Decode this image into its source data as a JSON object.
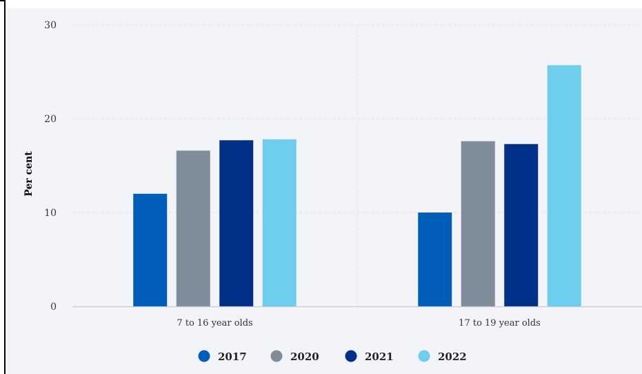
{
  "chart_data": {
    "type": "bar",
    "title": "",
    "xlabel": "",
    "ylabel": "Per cent",
    "ylim": [
      0,
      30
    ],
    "yticks": [
      0,
      10,
      20,
      30
    ],
    "grid": true,
    "legend_position": "bottom",
    "categories": [
      "7 to 16 year olds",
      "17 to 19 year olds"
    ],
    "series": [
      {
        "name": "2017",
        "color": "#005eb8",
        "values": [
          12.0,
          10.0
        ]
      },
      {
        "name": "2020",
        "color": "#7f8c99",
        "values": [
          16.6,
          17.6
        ]
      },
      {
        "name": "2021",
        "color": "#003087",
        "values": [
          17.7,
          17.3
        ]
      },
      {
        "name": "2022",
        "color": "#6fcdee",
        "values": [
          17.8,
          25.7
        ]
      }
    ]
  }
}
